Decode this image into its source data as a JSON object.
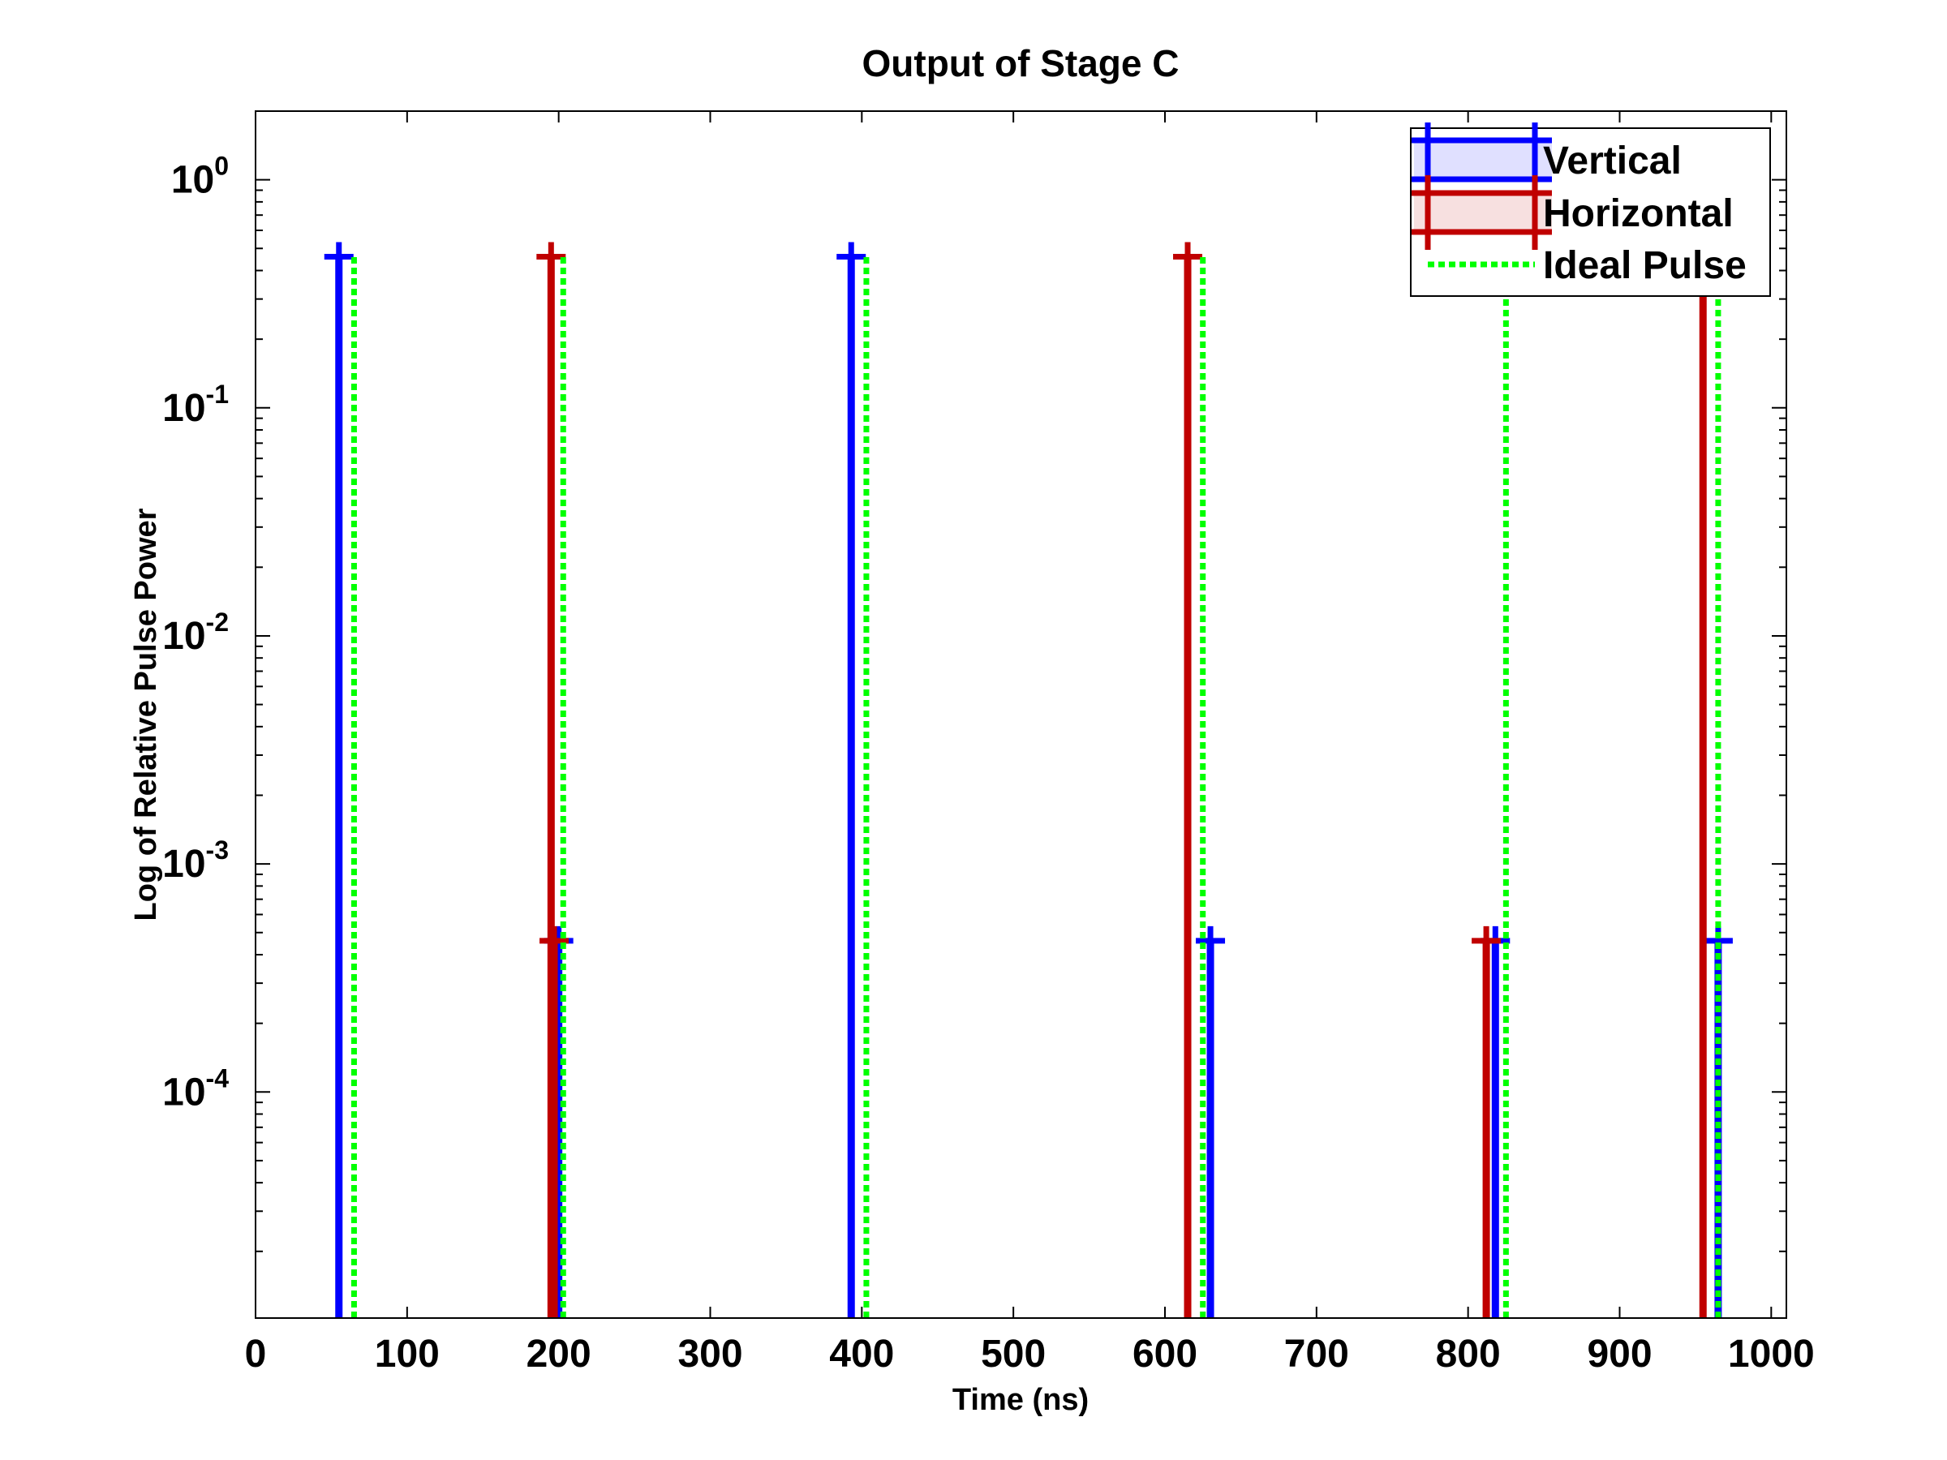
{
  "chart_data": {
    "type": "line",
    "title": "Output of Stage C",
    "xlabel": "Time (ns)",
    "ylabel": "Log of Relative Pulse Power",
    "y_scale": "log",
    "xlim": [
      0,
      1010
    ],
    "ylim": [
      1.02e-05,
      2
    ],
    "x_ticks": [
      0,
      100,
      200,
      300,
      400,
      500,
      600,
      700,
      800,
      900,
      1000
    ],
    "y_ticks": [
      {
        "value": 1,
        "base": "10",
        "exp": "0"
      },
      {
        "value": 0.1,
        "base": "10",
        "exp": "-1"
      },
      {
        "value": 0.01,
        "base": "10",
        "exp": "-2"
      },
      {
        "value": 0.001,
        "base": "10",
        "exp": "-3"
      },
      {
        "value": 0.0001,
        "base": "10",
        "exp": "-4"
      }
    ],
    "grid": false,
    "legend_position": "top-right",
    "series": [
      {
        "name": "Vertical",
        "color": "#0000ff",
        "style": "solid",
        "marker": "plus",
        "points": [
          {
            "x": 55,
            "y": 0.46
          },
          {
            "x": 200,
            "y": 0.00046
          },
          {
            "x": 393,
            "y": 0.46
          },
          {
            "x": 630,
            "y": 0.00046
          },
          {
            "x": 818,
            "y": 0.00046
          },
          {
            "x": 965,
            "y": 0.00046
          }
        ]
      },
      {
        "name": "Horizontal",
        "color": "#c00000",
        "style": "solid",
        "marker": "plus",
        "points": [
          {
            "x": 195,
            "y": 0.46
          },
          {
            "x": 197,
            "y": 0.00046
          },
          {
            "x": 615,
            "y": 0.46
          },
          {
            "x": 812,
            "y": 0.00046
          },
          {
            "x": 955,
            "y": 0.46
          }
        ]
      },
      {
        "name": "Ideal Pulse",
        "color": "#00ff00",
        "style": "dotted",
        "marker": "none",
        "points": [
          {
            "x": 65,
            "y": 0.46
          },
          {
            "x": 203,
            "y": 0.46
          },
          {
            "x": 403,
            "y": 0.46
          },
          {
            "x": 625,
            "y": 0.46
          },
          {
            "x": 825,
            "y": 0.46
          },
          {
            "x": 965,
            "y": 0.46
          }
        ]
      }
    ]
  }
}
